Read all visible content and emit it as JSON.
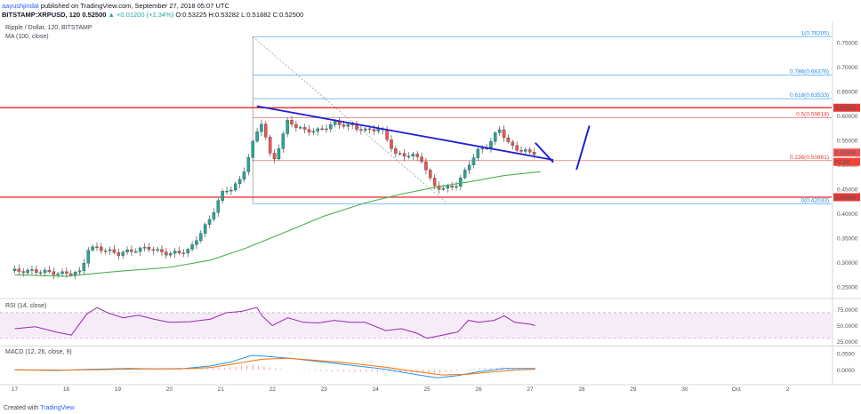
{
  "header": {
    "user": "aayushjindal",
    "published": "published on TradingView.com, September 27, 2018 05:07 UTC",
    "symbol": "BITSTAMP:XRPUSD, 120",
    "price": "0.52500",
    "change": "▲ +0.01200 (+2.34%)",
    "ohlc": "O:0.53225 H:0.53282 L:0.51882 C:0.52500"
  },
  "legend": {
    "title": "Ripple / Dollar, 120, BITSTAMP",
    "ma": "MA (100, close)",
    "rsi": "RSI (14, close)",
    "macd": "MACD (12, 26, close, 9)"
  },
  "footer": {
    "created": "Created with",
    "brand": "TradingView"
  },
  "colors": {
    "up": "#26a69a",
    "down": "#ef5350",
    "ma": "#4caf50",
    "trend": "#1f1fd6",
    "hline": "#e53935",
    "rsi": "#9c27b0",
    "macd": "#2196f3",
    "signal": "#ff6d00",
    "fib": "#0097a7"
  },
  "chart_data": [
    {
      "type": "candlestick",
      "title": "Ripple / Dollar, 120, BITSTAMP",
      "x_labels": [
        "17",
        "18",
        "19",
        "20",
        "21",
        "22",
        "23",
        "24",
        "25",
        "26",
        "27",
        "28",
        "29",
        "30",
        "Oct",
        "2"
      ],
      "y_ticks": [
        "0.75000",
        "0.70000",
        "0.65000",
        "0.60000",
        "0.55000",
        "0.50000",
        "0.45000",
        "0.40000",
        "0.35000",
        "0.30000",
        "0.25000"
      ],
      "ylim": [
        0.23,
        0.79
      ],
      "approx_close_path": [
        [
          17.0,
          0.283
        ],
        [
          17.5,
          0.282
        ],
        [
          17.9,
          0.277
        ],
        [
          18.3,
          0.28
        ],
        [
          18.4,
          0.328
        ],
        [
          18.6,
          0.33
        ],
        [
          19.0,
          0.318
        ],
        [
          19.3,
          0.325
        ],
        [
          19.6,
          0.33
        ],
        [
          19.8,
          0.322
        ],
        [
          20.0,
          0.318
        ],
        [
          20.2,
          0.321
        ],
        [
          20.4,
          0.326
        ],
        [
          20.6,
          0.36
        ],
        [
          20.8,
          0.39
        ],
        [
          21.0,
          0.44
        ],
        [
          21.2,
          0.452
        ],
        [
          21.4,
          0.47
        ],
        [
          21.6,
          0.54
        ],
        [
          21.8,
          0.59
        ],
        [
          22.0,
          0.5
        ],
        [
          22.3,
          0.59
        ],
        [
          22.6,
          0.57
        ],
        [
          22.9,
          0.57
        ],
        [
          23.2,
          0.585
        ],
        [
          23.5,
          0.58
        ],
        [
          23.8,
          0.57
        ],
        [
          24.1,
          0.575
        ],
        [
          24.4,
          0.52
        ],
        [
          24.7,
          0.52
        ],
        [
          24.9,
          0.51
        ],
        [
          25.1,
          0.46
        ],
        [
          25.3,
          0.45
        ],
        [
          25.6,
          0.46
        ],
        [
          25.8,
          0.5
        ],
        [
          26.0,
          0.53
        ],
        [
          26.2,
          0.54
        ],
        [
          26.4,
          0.575
        ],
        [
          26.6,
          0.54
        ],
        [
          26.8,
          0.53
        ],
        [
          27.0,
          0.525
        ],
        [
          27.1,
          0.525
        ]
      ],
      "ma_100": [
        [
          17.0,
          0.275
        ],
        [
          18.0,
          0.272
        ],
        [
          19.0,
          0.282
        ],
        [
          20.0,
          0.29
        ],
        [
          20.8,
          0.305
        ],
        [
          21.5,
          0.33
        ],
        [
          22.2,
          0.36
        ],
        [
          23.0,
          0.395
        ],
        [
          23.8,
          0.422
        ],
        [
          24.5,
          0.44
        ],
        [
          25.2,
          0.455
        ],
        [
          25.8,
          0.465
        ],
        [
          26.5,
          0.478
        ],
        [
          27.2,
          0.486
        ]
      ],
      "fibonacci": [
        {
          "level": "1",
          "value": 0.76205,
          "label": "1(0.76205)"
        },
        {
          "level": "0.786",
          "value": 0.68376,
          "label": "0.786(0.68376)"
        },
        {
          "level": "0.618",
          "value": 0.63533,
          "label": "0.618(0.63533)"
        },
        {
          "level": "0.5",
          "value": 0.59618,
          "label": "0.5(0.59618)"
        },
        {
          "level": "0.236",
          "value": 0.50861,
          "label": "0.236(0.50861)"
        },
        {
          "level": "0",
          "value": 0.42033,
          "label": "0(0.42033)"
        }
      ],
      "horizontal_levels": [
        {
          "value": 0.61682,
          "label": "0.61682"
        },
        {
          "value": 0.43369,
          "label": "0.43369"
        }
      ],
      "price_tags": [
        {
          "value": 0.525,
          "label": "0.52500"
        },
        {
          "value": 0.506,
          "label": "02:06"
        }
      ],
      "trendline": {
        "start": [
          21.7,
          0.62
        ],
        "end": [
          27.45,
          0.51
        ]
      },
      "projection": {
        "down": [
          [
            27.1,
            0.545
          ],
          [
            27.45,
            0.505
          ]
        ],
        "up": [
          [
            27.9,
            0.49
          ],
          [
            28.15,
            0.58
          ]
        ]
      },
      "legend_placement": "top-left",
      "grid": false
    },
    {
      "type": "line",
      "title": "RSI (14, close)",
      "y_ticks": [
        "75.0000",
        "50.0000",
        "25.0000"
      ],
      "ylim": [
        20,
        88
      ],
      "band": [
        30,
        70
      ],
      "series": [
        {
          "name": "RSI (14, close)",
          "points": [
            [
              17.0,
              45
            ],
            [
              17.4,
              48
            ],
            [
              17.8,
              40
            ],
            [
              18.1,
              35
            ],
            [
              18.4,
              68
            ],
            [
              18.6,
              78
            ],
            [
              18.8,
              70
            ],
            [
              19.1,
              62
            ],
            [
              19.4,
              66
            ],
            [
              19.7,
              60
            ],
            [
              20.0,
              55
            ],
            [
              20.4,
              56
            ],
            [
              20.8,
              60
            ],
            [
              21.1,
              70
            ],
            [
              21.4,
              72
            ],
            [
              21.7,
              78
            ],
            [
              21.8,
              65
            ],
            [
              22.0,
              50
            ],
            [
              22.3,
              62
            ],
            [
              22.6,
              55
            ],
            [
              22.9,
              54
            ],
            [
              23.2,
              58
            ],
            [
              23.5,
              55
            ],
            [
              23.8,
              55
            ],
            [
              24.2,
              42
            ],
            [
              24.5,
              45
            ],
            [
              24.8,
              38
            ],
            [
              25.0,
              30
            ],
            [
              25.3,
              35
            ],
            [
              25.6,
              40
            ],
            [
              25.8,
              58
            ],
            [
              26.0,
              55
            ],
            [
              26.3,
              58
            ],
            [
              26.5,
              65
            ],
            [
              26.7,
              55
            ],
            [
              27.0,
              52
            ],
            [
              27.1,
              50
            ]
          ]
        }
      ]
    },
    {
      "type": "line",
      "title": "MACD (12, 26, close, 9)",
      "y_ticks": [
        "0.0500",
        "0.0000"
      ],
      "ylim": [
        -0.038,
        0.07
      ],
      "series": [
        {
          "name": "MACD",
          "points": [
            [
              17.0,
              0.0
            ],
            [
              17.8,
              -0.002
            ],
            [
              18.5,
              0.002
            ],
            [
              19.2,
              0.004
            ],
            [
              19.8,
              0.003
            ],
            [
              20.3,
              0.004
            ],
            [
              20.8,
              0.012
            ],
            [
              21.2,
              0.025
            ],
            [
              21.6,
              0.045
            ],
            [
              21.9,
              0.042
            ],
            [
              22.4,
              0.035
            ],
            [
              23.0,
              0.024
            ],
            [
              23.6,
              0.013
            ],
            [
              24.2,
              0.002
            ],
            [
              24.8,
              -0.015
            ],
            [
              25.2,
              -0.025
            ],
            [
              25.6,
              -0.018
            ],
            [
              26.0,
              -0.006
            ],
            [
              26.5,
              0.004
            ],
            [
              27.1,
              0.004
            ]
          ]
        },
        {
          "name": "Signal",
          "points": [
            [
              17.0,
              0.0
            ],
            [
              18.0,
              -0.001
            ],
            [
              18.8,
              0.001
            ],
            [
              19.5,
              0.003
            ],
            [
              20.2,
              0.003
            ],
            [
              20.8,
              0.007
            ],
            [
              21.3,
              0.02
            ],
            [
              21.8,
              0.033
            ],
            [
              22.3,
              0.036
            ],
            [
              23.0,
              0.028
            ],
            [
              23.6,
              0.019
            ],
            [
              24.2,
              0.008
            ],
            [
              24.8,
              -0.006
            ],
            [
              25.3,
              -0.016
            ],
            [
              25.8,
              -0.014
            ],
            [
              26.3,
              -0.006
            ],
            [
              26.8,
              0.0
            ],
            [
              27.1,
              0.002
            ]
          ]
        }
      ]
    }
  ]
}
